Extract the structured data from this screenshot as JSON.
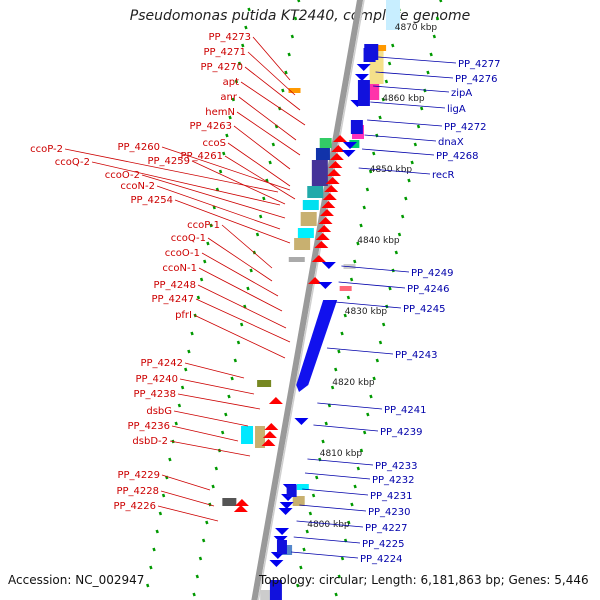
{
  "title": "Pseudomonas putida KT2440, complete genome",
  "accession": "Accession: NC_002947",
  "topology": "Topology: circular; Length: 6,181,863 bp; Genes: 5,446",
  "colors": {
    "left_label": "#cc0000",
    "right_label": "#0000aa",
    "forward_arrow": "#ff0000",
    "reverse_arrow": "#0000ee",
    "backbone": "#888888",
    "tick": "#009900"
  },
  "kbp_markers": [
    {
      "label": "4870 kbp",
      "kbp": 4870
    },
    {
      "label": "4860 kbp",
      "kbp": 4860
    },
    {
      "label": "4850 kbp",
      "kbp": 4850
    },
    {
      "label": "4840 kbp",
      "kbp": 4840
    },
    {
      "label": "4830 kbp",
      "kbp": 4830
    },
    {
      "label": "4820 kbp",
      "kbp": 4820
    },
    {
      "label": "4810 kbp",
      "kbp": 4810
    },
    {
      "label": "4800 kbp",
      "kbp": 4800
    }
  ],
  "left_labels": [
    "PP_4273",
    "PP_4271",
    "PP_4270",
    "apt",
    "anr",
    "hemN",
    "PP_4263",
    "ccoS",
    "PP_4260",
    "PP_4261",
    "ccoP-2",
    "PP_4259",
    "ccoQ-2",
    "ccoO-2",
    "ccoN-2",
    "PP_4254",
    "ccoP-1",
    "ccoQ-1",
    "ccoO-1",
    "ccoN-1",
    "PP_4248",
    "PP_4247",
    "pfrI",
    "PP_4242",
    "PP_4240",
    "PP_4238",
    "dsbG",
    "PP_4236",
    "dsbD-2",
    "PP_4229",
    "PP_4228",
    "PP_4226"
  ],
  "right_labels": [
    "PP_4277",
    "PP_4276",
    "zipA",
    "ligA",
    "PP_4272",
    "dnaX",
    "PP_4268",
    "recR",
    "PP_4249",
    "PP_4246",
    "PP_4245",
    "PP_4243",
    "PP_4241",
    "PP_4239",
    "PP_4233",
    "PP_4232",
    "PP_4231",
    "PP_4230",
    "PP_4227",
    "PP_4225",
    "PP_4224"
  ]
}
